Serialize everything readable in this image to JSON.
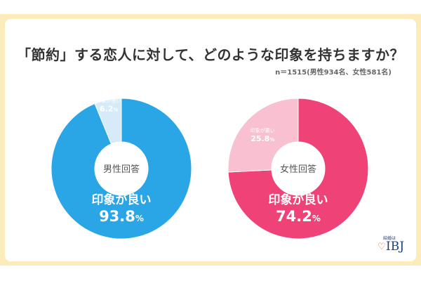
{
  "chart_data": [
    {
      "type": "pie",
      "style": "donut",
      "center_label": "男性回答",
      "slices": [
        {
          "label": "印象が良い",
          "value": 93.8,
          "color": "#2aa6e6"
        },
        {
          "label": "印象が悪い",
          "value": 6.2,
          "color": "#d6ebf7"
        }
      ]
    },
    {
      "type": "pie",
      "style": "donut",
      "center_label": "女性回答",
      "slices": [
        {
          "label": "印象が良い",
          "value": 74.2,
          "color": "#ef4277"
        },
        {
          "label": "印象が悪い",
          "value": 25.8,
          "color": "#f8c0d1"
        }
      ]
    }
  ],
  "title": "「節約」する恋人に対して、どのような印象を持ちますか？",
  "note": "n＝1515(男性934名、女性581名)",
  "logo": {
    "top": "結婚は",
    "main": "IBJ"
  },
  "unit": "%"
}
